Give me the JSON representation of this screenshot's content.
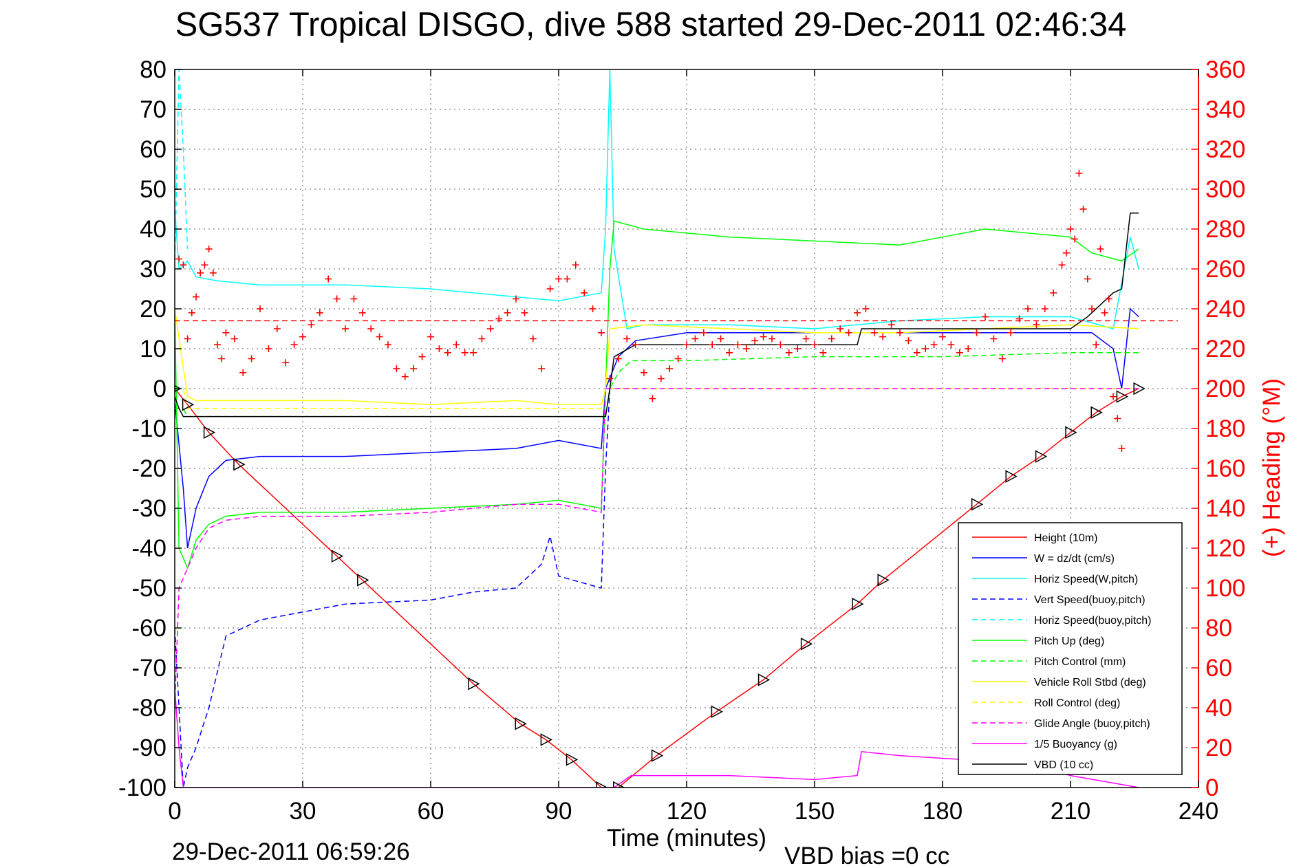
{
  "chart_data": {
    "type": "line",
    "title": "SG537 Tropical DISGO, dive 588 started 29-Dec-2011 02:46:34",
    "xlabel": "Time (minutes)",
    "ylabel": "",
    "ylabel_right": "(+) Heading (°M)",
    "footer_left": "29-Dec-2011 06:59:26",
    "footer_right": "VBD bias =0 cc",
    "xlim": [
      0,
      240
    ],
    "ylim": [
      -100,
      80
    ],
    "ylim_right": [
      0,
      360
    ],
    "xticks": [
      "0",
      "30",
      "60",
      "90",
      "120",
      "150",
      "180",
      "210",
      "240"
    ],
    "yticks": [
      "80",
      "70",
      "60",
      "50",
      "40",
      "30",
      "20",
      "10",
      "0",
      "-10",
      "-20",
      "-30",
      "-40",
      "-50",
      "-60",
      "-70",
      "-80",
      "-90",
      "-100"
    ],
    "yticks_right": [
      "360",
      "340",
      "320",
      "300",
      "280",
      "260",
      "240",
      "220",
      "200",
      "180",
      "160",
      "140",
      "120",
      "100",
      "80",
      "60",
      "40",
      "20",
      "0"
    ],
    "grid": true,
    "legend_position": "bottom-right",
    "colors": {
      "height": "#ff0000",
      "w": "#0000ff",
      "horiz_w": "#00ffff",
      "vert_buoy": "#0000ff",
      "horiz_buoy": "#00ffff",
      "pitch_up": "#00ff00",
      "pitch_control": "#00ff00",
      "roll": "#ffff00",
      "roll_control": "#ffff00",
      "glide": "#ff00ff",
      "buoyancy": "#ff00ff",
      "vbd": "#000000",
      "heading": "#ff0000",
      "right_axis": "#ff0000"
    },
    "series": [
      {
        "name": "Height (10m)",
        "style": "solid",
        "color": "height",
        "x": [
          0,
          3,
          8,
          15,
          38,
          44,
          70,
          81,
          87,
          93,
          100,
          104,
          113,
          127,
          138,
          148,
          160,
          166,
          188,
          196,
          203,
          210,
          216,
          222,
          226
        ],
        "y": [
          0,
          -4,
          -11,
          -19,
          -42,
          -48,
          -74,
          -84,
          -88,
          -93,
          -100,
          -100,
          -92,
          -81,
          -73,
          -64,
          -54,
          -48,
          -29,
          -22,
          -17,
          -11,
          -6,
          -2,
          0
        ]
      },
      {
        "name": "W = dz/dt (cm/s)",
        "style": "solid",
        "color": "w",
        "x": [
          0,
          2,
          3,
          5,
          8,
          12,
          20,
          40,
          60,
          80,
          90,
          100,
          101,
          104,
          108,
          120,
          140,
          160,
          180,
          200,
          215,
          220,
          222,
          224,
          226
        ],
        "y": [
          -3,
          -25,
          -40,
          -30,
          -22,
          -18,
          -17,
          -17,
          -16,
          -15,
          -13,
          -15,
          0,
          8,
          12,
          14,
          14,
          14,
          14,
          14,
          14,
          10,
          0,
          20,
          18
        ]
      },
      {
        "name": "Horiz Speed(W,pitch)",
        "style": "solid",
        "color": "horiz_w",
        "x": [
          0,
          1,
          3,
          5,
          10,
          20,
          40,
          60,
          80,
          90,
          100,
          101,
          102,
          103,
          106,
          110,
          130,
          150,
          170,
          190,
          210,
          220,
          224,
          226
        ],
        "y": [
          45,
          30,
          32,
          28,
          27,
          26,
          26,
          25,
          23,
          22,
          24,
          40,
          80,
          35,
          15,
          16,
          16,
          15,
          17,
          18,
          18,
          15,
          38,
          30
        ]
      },
      {
        "name": "Vert Speed(buoy,pitch)",
        "style": "dashed",
        "color": "vert_buoy",
        "x": [
          0,
          2,
          3,
          5,
          8,
          12,
          20,
          40,
          60,
          70,
          80,
          86,
          88,
          90,
          100,
          101,
          102
        ],
        "y": [
          -60,
          -100,
          -95,
          -90,
          -80,
          -62,
          -58,
          -54,
          -53,
          -51,
          -50,
          -44,
          -37,
          -47,
          -50,
          -20,
          0
        ]
      },
      {
        "name": "Horiz Speed(buoy,pitch)",
        "style": "dashed",
        "color": "horiz_buoy",
        "x": [
          0,
          1,
          2,
          3
        ],
        "y": [
          30,
          80,
          60,
          35
        ]
      },
      {
        "name": "Pitch Up (deg)",
        "style": "solid",
        "color": "pitch_up",
        "x": [
          0,
          1,
          3,
          5,
          8,
          12,
          20,
          40,
          60,
          80,
          90,
          100,
          101,
          102,
          103,
          110,
          130,
          150,
          170,
          190,
          210,
          215,
          222,
          226
        ],
        "y": [
          20,
          -40,
          -45,
          -38,
          -34,
          -32,
          -31,
          -31,
          -30,
          -29,
          -28,
          -30,
          0,
          30,
          42,
          40,
          38,
          37,
          36,
          40,
          38,
          34,
          32,
          35
        ]
      },
      {
        "name": "Pitch Control (mm)",
        "style": "dashed",
        "color": "pitch_control",
        "x": [
          0,
          2,
          3,
          100,
          101,
          102,
          104,
          107,
          120,
          150,
          180,
          210,
          226
        ],
        "y": [
          -5,
          -5,
          -7,
          -7,
          -7,
          0,
          4,
          7,
          7,
          8,
          8,
          9,
          9
        ]
      },
      {
        "name": "Vehicle Roll Stbd (deg)",
        "style": "solid",
        "color": "roll",
        "x": [
          0,
          3,
          5,
          20,
          40,
          60,
          80,
          90,
          100,
          101,
          102,
          110,
          130,
          150,
          170,
          190,
          210,
          226
        ],
        "y": [
          20,
          -2,
          -3,
          -3,
          -3,
          -4,
          -3,
          -4,
          -4,
          0,
          15,
          16,
          15,
          14,
          14,
          15,
          16,
          15
        ]
      },
      {
        "name": "Roll Control (deg)",
        "style": "dashed",
        "color": "roll_control",
        "x": [
          0,
          2,
          3,
          100,
          101,
          102,
          226
        ],
        "y": [
          0,
          0,
          -5,
          -5,
          0,
          0,
          0
        ]
      },
      {
        "name": "Glide Angle (buoy,pitch)",
        "style": "dashed",
        "color": "glide",
        "x": [
          0,
          1,
          3,
          5,
          8,
          12,
          20,
          40,
          60,
          80,
          90,
          100,
          101,
          102,
          226
        ],
        "y": [
          -80,
          -50,
          -45,
          -40,
          -35,
          -33,
          -32,
          -32,
          -31,
          -29,
          -29,
          -31,
          0,
          0,
          0
        ]
      },
      {
        "name": "1/5 Buoyancy (g)",
        "style": "solid",
        "color": "buoyancy",
        "x": [
          0,
          1,
          2,
          103,
          107,
          130,
          150,
          160,
          161,
          170,
          200,
          210,
          226
        ],
        "y": [
          -75,
          -90,
          -100,
          -100,
          -97,
          -97,
          -98,
          -97,
          -91,
          -92,
          -94,
          -97,
          -100
        ]
      },
      {
        "name": "VBD (10 cc)",
        "style": "solid",
        "color": "vbd",
        "x": [
          0,
          1,
          2,
          100,
          101,
          102,
          103,
          108,
          160,
          161,
          210,
          214,
          220,
          222,
          224,
          226
        ],
        "y": [
          -2,
          -5,
          -7,
          -7,
          -7,
          0,
          8,
          11,
          11,
          15,
          15,
          18,
          24,
          25,
          44,
          44
        ]
      }
    ],
    "heading": {
      "name": "Heading",
      "axis": "right",
      "marker": "+",
      "mean_line": 234,
      "x": [
        0,
        1,
        2,
        3,
        4,
        5,
        6,
        7,
        8,
        9,
        10,
        11,
        12,
        14,
        16,
        18,
        20,
        22,
        24,
        26,
        28,
        30,
        32,
        34,
        36,
        38,
        40,
        42,
        44,
        46,
        48,
        50,
        52,
        54,
        56,
        58,
        60,
        62,
        64,
        66,
        68,
        70,
        72,
        74,
        76,
        78,
        80,
        82,
        84,
        86,
        88,
        90,
        92,
        94,
        96,
        98,
        100,
        102,
        104,
        106,
        108,
        110,
        112,
        114,
        116,
        118,
        120,
        122,
        124,
        126,
        128,
        130,
        132,
        134,
        136,
        138,
        140,
        142,
        144,
        146,
        148,
        150,
        152,
        154,
        156,
        158,
        160,
        162,
        164,
        166,
        168,
        170,
        172,
        174,
        176,
        178,
        180,
        182,
        184,
        186,
        188,
        190,
        192,
        194,
        196,
        198,
        200,
        202,
        204,
        206,
        208,
        209,
        210,
        211,
        212,
        213,
        214,
        215,
        216,
        217,
        218,
        219,
        220,
        221,
        222
      ],
      "y": [
        300,
        265,
        262,
        225,
        238,
        246,
        258,
        262,
        270,
        258,
        222,
        215,
        228,
        225,
        208,
        215,
        240,
        220,
        230,
        213,
        222,
        226,
        232,
        238,
        255,
        245,
        230,
        245,
        238,
        230,
        226,
        222,
        210,
        206,
        210,
        216,
        226,
        220,
        218,
        222,
        218,
        218,
        225,
        230,
        235,
        238,
        245,
        238,
        225,
        210,
        250,
        255,
        255,
        262,
        248,
        240,
        228,
        205,
        215,
        225,
        222,
        208,
        195,
        205,
        210,
        215,
        222,
        225,
        228,
        222,
        225,
        218,
        222,
        220,
        224,
        226,
        225,
        222,
        218,
        220,
        225,
        222,
        218,
        225,
        230,
        228,
        238,
        240,
        228,
        226,
        232,
        228,
        224,
        218,
        220,
        222,
        226,
        222,
        218,
        220,
        228,
        236,
        225,
        215,
        228,
        235,
        240,
        232,
        240,
        248,
        262,
        268,
        280,
        275,
        308,
        290,
        255,
        240,
        222,
        270,
        238,
        245,
        196,
        185,
        170
      ]
    }
  }
}
